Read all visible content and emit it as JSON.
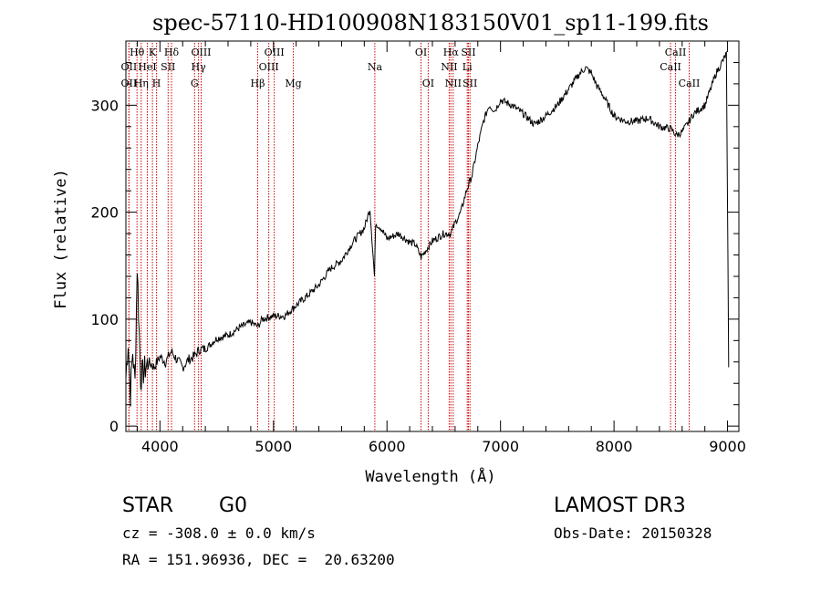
{
  "chart_data": {
    "type": "line",
    "title": "spec-57110-HD100908N183150V01_sp11-199.fits",
    "xlabel": "Wavelength (Å)",
    "ylabel": "Flux (relative)",
    "xlim": [
      3700,
      9100
    ],
    "ylim": [
      -5,
      360
    ],
    "x_ticks": [
      4000,
      5000,
      6000,
      7000,
      8000,
      9000
    ],
    "y_ticks": [
      0,
      100,
      200,
      300
    ],
    "x_tick_labels": [
      "4000",
      "5000",
      "6000",
      "7000",
      "8000",
      "9000"
    ],
    "y_tick_labels": [
      "0",
      "100",
      "200",
      "300"
    ],
    "series": [
      {
        "name": "flux",
        "x": [
          3700,
          3720,
          3740,
          3760,
          3780,
          3800,
          3830,
          3860,
          3900,
          3950,
          4000,
          4050,
          4100,
          4150,
          4200,
          4250,
          4300,
          4350,
          4400,
          4500,
          4600,
          4700,
          4800,
          4862,
          4900,
          5000,
          5100,
          5200,
          5300,
          5400,
          5500,
          5600,
          5700,
          5800,
          5850,
          5890,
          5900,
          5950,
          6000,
          6100,
          6200,
          6250,
          6300,
          6400,
          6500,
          6563,
          6600,
          6650,
          6700,
          6750,
          6800,
          6850,
          6900,
          6950,
          7000,
          7100,
          7200,
          7300,
          7400,
          7500,
          7600,
          7700,
          7750,
          7800,
          7850,
          7900,
          8000,
          8100,
          8200,
          8300,
          8400,
          8500,
          8550,
          8600,
          8650,
          8700,
          8800,
          8900,
          8950,
          8990,
          9010
        ],
        "y": [
          45,
          80,
          30,
          70,
          40,
          150,
          45,
          52,
          60,
          55,
          65,
          60,
          70,
          62,
          55,
          62,
          65,
          72,
          72,
          82,
          85,
          92,
          97,
          93,
          100,
          103,
          103,
          113,
          122,
          132,
          147,
          155,
          172,
          185,
          203,
          140,
          190,
          185,
          175,
          180,
          172,
          170,
          158,
          173,
          180,
          180,
          190,
          200,
          220,
          235,
          262,
          285,
          300,
          295,
          305,
          300,
          292,
          282,
          290,
          300,
          315,
          330,
          335,
          330,
          318,
          310,
          290,
          285,
          285,
          288,
          280,
          278,
          272,
          275,
          283,
          292,
          300,
          330,
          340,
          348,
          55
        ]
      }
    ],
    "lines": [
      {
        "name": "Hθ",
        "wavelength": 3798,
        "row": 1
      },
      {
        "name": "OII",
        "wavelength": 3727,
        "row": 2
      },
      {
        "name": "OII",
        "wavelength": 3727,
        "row": 3
      },
      {
        "name": "Hη",
        "wavelength": 3835,
        "row": 3
      },
      {
        "name": "K",
        "wavelength": 3934,
        "row": 1
      },
      {
        "name": "HeI",
        "wavelength": 3889,
        "row": 2
      },
      {
        "name": "H",
        "wavelength": 3970,
        "row": 3
      },
      {
        "name": "SII",
        "wavelength": 4072,
        "row": 2
      },
      {
        "name": "Hδ",
        "wavelength": 4102,
        "row": 1
      },
      {
        "name": "OIII",
        "wavelength": 4363,
        "row": 1
      },
      {
        "name": "Hγ",
        "wavelength": 4340,
        "row": 2
      },
      {
        "name": "G",
        "wavelength": 4305,
        "row": 3
      },
      {
        "name": "OIII",
        "wavelength": 5007,
        "row": 1
      },
      {
        "name": "OIII",
        "wavelength": 4959,
        "row": 2
      },
      {
        "name": "Hβ",
        "wavelength": 4861,
        "row": 3
      },
      {
        "name": "Mg",
        "wavelength": 5175,
        "row": 3
      },
      {
        "name": "Na",
        "wavelength": 5893,
        "row": 2
      },
      {
        "name": "OI",
        "wavelength": 6300,
        "row": 1
      },
      {
        "name": "OI",
        "wavelength": 6363,
        "row": 3
      },
      {
        "name": "Hα",
        "wavelength": 6563,
        "row": 1
      },
      {
        "name": "NII",
        "wavelength": 6548,
        "row": 2
      },
      {
        "name": "NII",
        "wavelength": 6583,
        "row": 3
      },
      {
        "name": "SII",
        "wavelength": 6717,
        "row": 1
      },
      {
        "name": "Li",
        "wavelength": 6707,
        "row": 2
      },
      {
        "name": "SII",
        "wavelength": 6731,
        "row": 3
      },
      {
        "name": "CaII",
        "wavelength": 8542,
        "row": 1
      },
      {
        "name": "CaII",
        "wavelength": 8498,
        "row": 2
      },
      {
        "name": "CaII",
        "wavelength": 8662,
        "row": 3
      }
    ],
    "colors": {
      "spectrum": "#000000",
      "lines": "#cc0000",
      "axes": "#000000"
    }
  },
  "info": {
    "object_class": "STAR",
    "subclass": "G0",
    "survey": "LAMOST DR3",
    "cz": "cz = -308.0 ± 0.0 km/s",
    "obs_date": "Obs-Date: 20150328",
    "radec": "RA = 151.96936, DEC =  20.63200"
  }
}
